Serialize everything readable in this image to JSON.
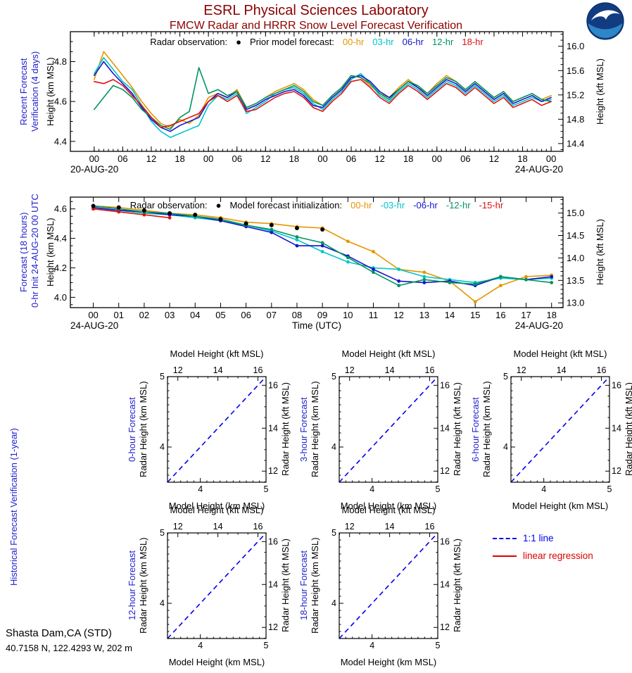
{
  "header": {
    "title": "ESRL Physical Sciences Laboratory",
    "subtitle": "FMCW Radar and HRRR Snow Level Forecast Verification"
  },
  "logo": {
    "name": "NOAA emblem"
  },
  "station": {
    "name": "Shasta Dam,CA (STD)",
    "coords": "40.7158 N, 122.4293 W, 202 m"
  },
  "colors": {
    "title": "#8B0000",
    "side_label": "#2222CC",
    "series_00hr": "#E69500",
    "series_03hr": "#00C5CC",
    "series_06hr": "#1414CC",
    "series_12hr": "#00945F",
    "series_red": "#E01010",
    "one_to_one": "#0000EE",
    "regression": "#DD0000"
  },
  "chart_data": [
    {
      "id": "recent",
      "type": "line",
      "side_label_lines": [
        "Recent Forecast",
        "Verification (4 days)"
      ],
      "ylabel_left": "Height (km MSL)",
      "ylabel_right": "Height (kft MSL)",
      "xlabel": "",
      "x_date_left": "20-AUG-20",
      "x_date_right": "24-AUG-20",
      "xlim": [
        -5,
        98.5
      ],
      "ylim": [
        4.35,
        4.95
      ],
      "yticks_km": [
        4.4,
        4.6,
        4.8
      ],
      "yticks_kft": [
        14.4,
        14.8,
        15.2,
        15.6,
        16.0
      ],
      "xticks": {
        "start": 0,
        "step": 6,
        "labels": [
          "00",
          "06",
          "12",
          "18",
          "00",
          "06",
          "12",
          "18",
          "00",
          "06",
          "12",
          "18",
          "00",
          "06",
          "12",
          "18",
          "00"
        ]
      },
      "x_minor": 1,
      "markers": false,
      "legend": {
        "obs_label": "Radar observation:",
        "obs_marker": "●",
        "group_label": "Prior model forecast:",
        "items": [
          {
            "label": "00-hr",
            "color": "#E69500"
          },
          {
            "label": "03-hr",
            "color": "#00C5CC"
          },
          {
            "label": "06-hr",
            "color": "#1414CC"
          },
          {
            "label": "12-hr",
            "color": "#00945F"
          },
          {
            "label": "18-hr",
            "color": "#E01010"
          }
        ]
      },
      "series": [
        {
          "name": "00-hr",
          "color": "#E69500",
          "x_start": 0,
          "x_step": 2,
          "values": [
            4.71,
            4.85,
            4.79,
            4.73,
            4.67,
            4.6,
            4.54,
            4.49,
            4.47,
            4.51,
            4.49,
            4.53,
            4.62,
            4.64,
            4.62,
            4.66,
            4.57,
            4.59,
            4.62,
            4.65,
            4.67,
            4.69,
            4.66,
            4.61,
            4.58,
            4.63,
            4.67,
            4.73,
            4.72,
            4.68,
            4.64,
            4.62,
            4.67,
            4.71,
            4.67,
            4.64,
            4.69,
            4.73,
            4.7,
            4.66,
            4.7,
            4.66,
            4.62,
            4.65,
            4.6,
            4.62,
            4.64,
            4.61,
            4.63
          ]
        },
        {
          "name": "03-hr",
          "color": "#00C5CC",
          "x_start": 0,
          "x_step": 2,
          "values": [
            4.74,
            4.82,
            4.76,
            4.7,
            4.66,
            4.58,
            4.5,
            4.45,
            4.42,
            4.44,
            4.46,
            4.48,
            4.58,
            4.63,
            4.61,
            4.64,
            4.54,
            4.57,
            4.6,
            4.64,
            4.66,
            4.67,
            4.64,
            4.59,
            4.56,
            4.61,
            4.65,
            4.71,
            4.74,
            4.69,
            4.63,
            4.6,
            4.65,
            4.69,
            4.66,
            4.62,
            4.66,
            4.7,
            4.68,
            4.64,
            4.68,
            4.64,
            4.6,
            4.63,
            4.58,
            4.6,
            4.62,
            4.6,
            4.61
          ]
        },
        {
          "name": "06-hr",
          "color": "#1414CC",
          "x_start": 0,
          "x_step": 2,
          "values": [
            4.73,
            4.8,
            4.74,
            4.69,
            4.64,
            4.57,
            4.51,
            4.47,
            4.45,
            4.48,
            4.5,
            4.52,
            4.6,
            4.64,
            4.62,
            4.65,
            4.56,
            4.58,
            4.61,
            4.63,
            4.65,
            4.66,
            4.63,
            4.58,
            4.57,
            4.62,
            4.66,
            4.72,
            4.73,
            4.7,
            4.65,
            4.62,
            4.66,
            4.7,
            4.67,
            4.63,
            4.67,
            4.71,
            4.69,
            4.65,
            4.69,
            4.65,
            4.61,
            4.64,
            4.59,
            4.61,
            4.63,
            4.6,
            4.62
          ]
        },
        {
          "name": "12-hr",
          "color": "#00945F",
          "x_start": 0,
          "x_step": 2,
          "values": [
            4.56,
            4.62,
            4.68,
            4.66,
            4.62,
            4.56,
            4.52,
            4.48,
            4.46,
            4.52,
            4.55,
            4.77,
            4.64,
            4.66,
            4.63,
            4.65,
            4.57,
            4.59,
            4.62,
            4.64,
            4.66,
            4.68,
            4.65,
            4.6,
            4.58,
            4.63,
            4.67,
            4.73,
            4.72,
            4.69,
            4.64,
            4.61,
            4.66,
            4.7,
            4.68,
            4.64,
            4.68,
            4.72,
            4.7,
            4.66,
            4.7,
            4.66,
            4.62,
            4.65,
            4.6,
            4.62,
            4.64,
            4.61,
            4.6
          ]
        },
        {
          "name": "18-hr",
          "color": "#E01010",
          "x_start": 0,
          "x_step": 2,
          "values": [
            4.7,
            4.69,
            4.71,
            4.68,
            4.63,
            4.58,
            4.52,
            4.47,
            4.48,
            4.5,
            4.52,
            4.54,
            4.6,
            4.63,
            4.6,
            4.63,
            4.55,
            4.56,
            4.59,
            4.62,
            4.64,
            4.65,
            4.62,
            4.57,
            4.55,
            4.6,
            4.64,
            4.7,
            4.71,
            4.67,
            4.62,
            4.59,
            4.64,
            4.68,
            4.65,
            4.61,
            4.65,
            4.69,
            4.67,
            4.63,
            4.67,
            4.63,
            4.59,
            4.62,
            4.57,
            4.59,
            4.61,
            4.58,
            4.6
          ]
        }
      ]
    },
    {
      "id": "forecast18",
      "type": "line",
      "side_label_lines": [
        "Forecast (18 hours)",
        "0-hr Init 24-AUG-20 00 UTC"
      ],
      "ylabel_left": "Height (km MSL)",
      "ylabel_right": "Height (kft MSL)",
      "xlabel": "Time (UTC)",
      "x_date_left": "24-AUG-20",
      "x_date_right": "24-AUG-20",
      "xlim": [
        -0.9,
        18.45
      ],
      "ylim": [
        3.93,
        4.68
      ],
      "yticks_km": [
        4.0,
        4.2,
        4.4,
        4.6
      ],
      "yticks_kft": [
        13.0,
        13.5,
        14.0,
        14.5,
        15.0
      ],
      "xticks": {
        "start": 0,
        "step": 1,
        "labels": [
          "00",
          "01",
          "02",
          "03",
          "04",
          "05",
          "06",
          "07",
          "08",
          "09",
          "10",
          "11",
          "12",
          "13",
          "14",
          "15",
          "16",
          "17",
          "18"
        ]
      },
      "x_minor": 0,
      "markers": true,
      "legend": {
        "obs_label": "Radar observation:",
        "obs_marker": "●",
        "group_label": "Model forecast initialization:",
        "items": [
          {
            "label": "00-hr",
            "color": "#E69500"
          },
          {
            "label": "-03-hr",
            "color": "#00C5CC"
          },
          {
            "label": "-06-hr",
            "color": "#1414CC"
          },
          {
            "label": "-12-hr",
            "color": "#00945F"
          },
          {
            "label": "-15-hr",
            "color": "#E01010"
          }
        ]
      },
      "radar_obs": {
        "x_start": 0,
        "x_step": 1,
        "color": "#000000",
        "values": [
          4.62,
          4.61,
          4.59,
          4.57,
          4.56,
          4.53,
          4.5,
          4.49,
          4.47,
          4.46
        ]
      },
      "series": [
        {
          "name": "00-hr",
          "color": "#E69500",
          "x_start": 0,
          "x_step": 1,
          "values": [
            4.62,
            4.61,
            4.59,
            4.57,
            4.56,
            4.54,
            4.51,
            4.5,
            4.48,
            4.47,
            4.38,
            4.31,
            4.19,
            4.17,
            4.11,
            3.97,
            4.08,
            4.14,
            4.15
          ]
        },
        {
          "name": "-03-hr",
          "color": "#00C5CC",
          "x_start": 0,
          "x_step": 1,
          "values": [
            4.6,
            4.59,
            4.57,
            4.56,
            4.54,
            4.52,
            4.49,
            4.45,
            4.39,
            4.31,
            4.24,
            4.2,
            4.19,
            4.14,
            4.12,
            4.1,
            4.13,
            4.12,
            4.13
          ]
        },
        {
          "name": "-06-hr",
          "color": "#1414CC",
          "x_start": 0,
          "x_step": 1,
          "values": [
            4.61,
            4.59,
            4.58,
            4.56,
            4.55,
            4.52,
            4.48,
            4.44,
            4.35,
            4.35,
            4.28,
            4.19,
            4.11,
            4.1,
            4.11,
            4.08,
            4.14,
            4.12,
            4.14
          ]
        },
        {
          "name": "-12-hr",
          "color": "#00945F",
          "x_start": 0,
          "x_step": 1,
          "values": [
            4.62,
            4.6,
            4.58,
            4.57,
            4.55,
            4.53,
            4.49,
            4.46,
            4.41,
            4.37,
            4.27,
            4.17,
            4.08,
            4.12,
            4.1,
            4.09,
            4.14,
            4.12,
            4.1
          ]
        },
        {
          "name": "-15-hr",
          "color": "#E01010",
          "x_start": 0,
          "x_step": 1,
          "values": [
            4.6,
            4.58,
            4.56,
            4.54
          ]
        }
      ]
    },
    {
      "id": "historical",
      "type": "scatter",
      "side_label": "Historical Forecast Verification (1-year)",
      "top_label": "Model Height (kft MSL)",
      "bottom_label": "Model Height (km MSL)",
      "left_label": "Radar Height (km MSL)",
      "right_label": "Radar Height (kft MSL)",
      "lim_km": [
        3.5,
        5
      ],
      "ticks_km": [
        4,
        5
      ],
      "ticks_kft": [
        12,
        14,
        16
      ],
      "points": [],
      "subplots": [
        {
          "label": "0-hour Forecast"
        },
        {
          "label": "3-hour Forecast"
        },
        {
          "label": "6-hour Forecast"
        },
        {
          "label": "12-hour Forecast"
        },
        {
          "label": "18-hour Forecast"
        }
      ],
      "legend": [
        {
          "label": "1:1 line",
          "color": "#0000EE",
          "dashed": true
        },
        {
          "label": "linear regression",
          "color": "#DD0000",
          "dashed": false
        }
      ]
    }
  ]
}
